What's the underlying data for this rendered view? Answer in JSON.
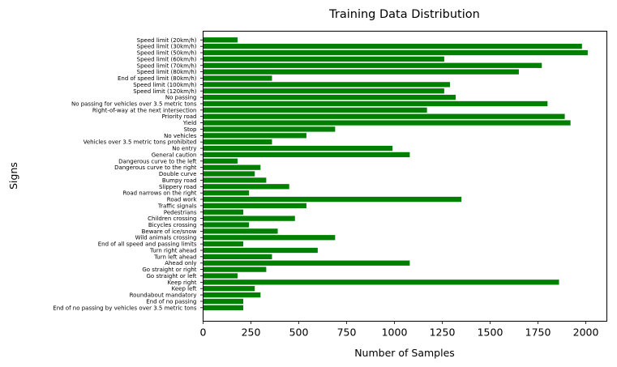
{
  "chart_data": {
    "type": "bar",
    "orientation": "horizontal",
    "title": "Training Data Distribution",
    "xlabel": "Number of Samples",
    "ylabel": "Signs",
    "bar_color": "#008000",
    "xlim": [
      0,
      2110
    ],
    "xticks": [
      0,
      250,
      500,
      750,
      1000,
      1250,
      1500,
      1750,
      2000
    ],
    "grid": false,
    "categories": [
      "Speed limit (20km/h)",
      "Speed limit (30km/h)",
      "Speed limit (50km/h)",
      "Speed limit (60km/h)",
      "Speed limit (70km/h)",
      "Speed limit (80km/h)",
      "End of speed limit (80km/h)",
      "Speed limit (100km/h)",
      "Speed limit (120km/h)",
      "No passing",
      "No passing for vehicles over 3.5 metric tons",
      "Right-of-way at the next intersection",
      "Priority road",
      "Yield",
      "Stop",
      "No vehicles",
      "Vehicles over 3.5 metric tons prohibited",
      "No entry",
      "General caution",
      "Dangerous curve to the left",
      "Dangerous curve to the right",
      "Double curve",
      "Bumpy road",
      "Slippery road",
      "Road narrows on the right",
      "Road work",
      "Traffic signals",
      "Pedestrians",
      "Children crossing",
      "Bicycles crossing",
      "Beware of ice/snow",
      "Wild animals crossing",
      "End of all speed and passing limits",
      "Turn right ahead",
      "Turn left ahead",
      "Ahead only",
      "Go straight or right",
      "Go straight or left",
      "Keep right",
      "Keep left",
      "Roundabout mandatory",
      "End of no passing",
      "End of no passing by vehicles over 3.5 metric tons"
    ],
    "values": [
      180,
      1980,
      2010,
      1260,
      1770,
      1650,
      360,
      1290,
      1260,
      1320,
      1800,
      1170,
      1890,
      1920,
      690,
      540,
      360,
      990,
      1080,
      180,
      300,
      270,
      330,
      450,
      240,
      1350,
      540,
      210,
      480,
      240,
      390,
      690,
      210,
      599,
      360,
      1080,
      330,
      180,
      1860,
      270,
      300,
      210,
      210
    ]
  }
}
